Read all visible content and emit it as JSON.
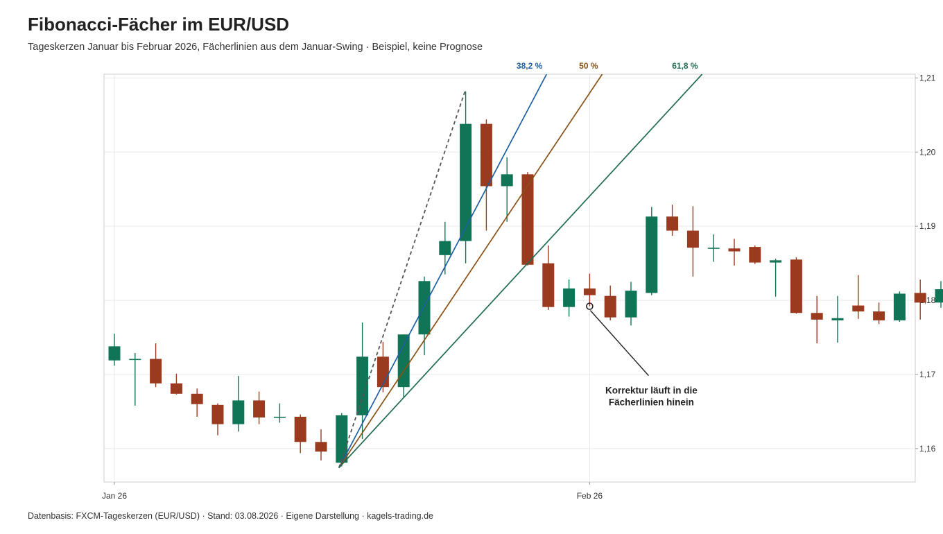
{
  "page": {
    "title": "Fibonacci-Fächer im EUR/USD",
    "subtitle": "Tageskerzen Januar bis Februar 2026, Fächerlinien aus dem Januar-Swing · Beispiel, keine Prognose",
    "footer": "Datenbasis: FXCM-Tageskerzen (EUR/USD) · Stand: 03.08.2026 · Eigene Darstellung · kagels-trading.de"
  },
  "colors": {
    "up": "#107557",
    "down": "#9a3a1e",
    "fan_382": "#1d5fa0",
    "fan_50": "#8a5113",
    "fan_618": "#1f6b52",
    "swing_line": "#555555",
    "grid": "#eaeaea",
    "axis": "#cccccc"
  },
  "chart_data": {
    "type": "candlestick",
    "title": "Fibonacci-Fächer im EUR/USD",
    "ylim": [
      1.1555,
      1.2105
    ],
    "y_axis_position": "right",
    "y_ticks": [
      {
        "value": 1.16,
        "label": "1,16"
      },
      {
        "value": 1.17,
        "label": "1,17"
      },
      {
        "value": 1.18,
        "label": "1,18"
      },
      {
        "value": 1.19,
        "label": "1,19"
      },
      {
        "value": 1.2,
        "label": "1,20"
      },
      {
        "value": 1.21,
        "label": "1,21"
      }
    ],
    "x_ticks": [
      {
        "date": "2026-01-26",
        "label": "Jan 26"
      },
      {
        "date": "2026-02-26",
        "label": "Feb 26"
      }
    ],
    "candles": [
      {
        "date": "2026-01-26",
        "open": 1.1719,
        "high": 1.1755,
        "low": 1.1712,
        "close": 1.1738
      },
      {
        "date": "2026-01-27",
        "open": 1.1721,
        "high": 1.1729,
        "low": 1.1658,
        "close": 1.1721
      },
      {
        "date": "2026-01-28",
        "open": 1.1721,
        "high": 1.1742,
        "low": 1.1683,
        "close": 1.1688
      },
      {
        "date": "2026-01-29",
        "open": 1.1688,
        "high": 1.1701,
        "low": 1.1673,
        "close": 1.1674
      },
      {
        "date": "2026-01-30",
        "open": 1.1674,
        "high": 1.1681,
        "low": 1.1643,
        "close": 1.166
      },
      {
        "date": "2026-02-02",
        "open": 1.1659,
        "high": 1.1661,
        "low": 1.1618,
        "close": 1.1633
      },
      {
        "date": "2026-02-03",
        "open": 1.1633,
        "high": 1.1698,
        "low": 1.1623,
        "close": 1.1665
      },
      {
        "date": "2026-02-04",
        "open": 1.1665,
        "high": 1.1677,
        "low": 1.1633,
        "close": 1.1642
      },
      {
        "date": "2026-02-05",
        "open": 1.1642,
        "high": 1.1661,
        "low": 1.1635,
        "close": 1.1643
      },
      {
        "date": "2026-02-06",
        "open": 1.1643,
        "high": 1.1646,
        "low": 1.1594,
        "close": 1.1609
      },
      {
        "date": "2026-02-09",
        "open": 1.1609,
        "high": 1.1626,
        "low": 1.1584,
        "close": 1.1596
      },
      {
        "date": "2026-02-10",
        "open": 1.1581,
        "high": 1.1648,
        "low": 1.1576,
        "close": 1.1645
      },
      {
        "date": "2026-02-11",
        "open": 1.1645,
        "high": 1.177,
        "low": 1.1613,
        "close": 1.1724
      },
      {
        "date": "2026-02-12",
        "open": 1.1724,
        "high": 1.1744,
        "low": 1.1676,
        "close": 1.1683
      },
      {
        "date": "2026-02-13",
        "open": 1.1683,
        "high": 1.1754,
        "low": 1.1669,
        "close": 1.1754
      },
      {
        "date": "2026-02-16",
        "open": 1.1754,
        "high": 1.1832,
        "low": 1.1726,
        "close": 1.1826
      },
      {
        "date": "2026-02-17",
        "open": 1.1861,
        "high": 1.1906,
        "low": 1.1835,
        "close": 1.188
      },
      {
        "date": "2026-02-18",
        "open": 1.188,
        "high": 1.2082,
        "low": 1.185,
        "close": 1.2038
      },
      {
        "date": "2026-02-19",
        "open": 1.2038,
        "high": 1.2044,
        "low": 1.1894,
        "close": 1.1954
      },
      {
        "date": "2026-02-20",
        "open": 1.1954,
        "high": 1.1993,
        "low": 1.1906,
        "close": 1.197
      },
      {
        "date": "2026-02-23",
        "open": 1.197,
        "high": 1.1973,
        "low": 1.1847,
        "close": 1.1848
      },
      {
        "date": "2026-02-24",
        "open": 1.185,
        "high": 1.1874,
        "low": 1.1787,
        "close": 1.1791
      },
      {
        "date": "2026-02-25",
        "open": 1.1791,
        "high": 1.1828,
        "low": 1.1778,
        "close": 1.1816
      },
      {
        "date": "2026-02-26",
        "open": 1.1816,
        "high": 1.1836,
        "low": 1.1792,
        "close": 1.1807
      },
      {
        "date": "2026-02-27",
        "open": 1.1806,
        "high": 1.182,
        "low": 1.1773,
        "close": 1.1777
      },
      {
        "date": "2026-03-02",
        "open": 1.1777,
        "high": 1.1825,
        "low": 1.1766,
        "close": 1.1813
      },
      {
        "date": "2026-03-03",
        "open": 1.181,
        "high": 1.1926,
        "low": 1.1807,
        "close": 1.1913
      },
      {
        "date": "2026-03-04",
        "open": 1.1913,
        "high": 1.1929,
        "low": 1.1887,
        "close": 1.1894
      },
      {
        "date": "2026-03-05",
        "open": 1.1894,
        "high": 1.1927,
        "low": 1.1832,
        "close": 1.1871
      },
      {
        "date": "2026-03-06",
        "open": 1.1871,
        "high": 1.1889,
        "low": 1.1852,
        "close": 1.1871
      },
      {
        "date": "2026-03-09",
        "open": 1.187,
        "high": 1.1883,
        "low": 1.1847,
        "close": 1.1866
      },
      {
        "date": "2026-03-10",
        "open": 1.1872,
        "high": 1.1874,
        "low": 1.1849,
        "close": 1.1851
      },
      {
        "date": "2026-03-11",
        "open": 1.1851,
        "high": 1.1856,
        "low": 1.1805,
        "close": 1.1854
      },
      {
        "date": "2026-03-12",
        "open": 1.1855,
        "high": 1.1858,
        "low": 1.1782,
        "close": 1.1783
      },
      {
        "date": "2026-03-13",
        "open": 1.1783,
        "high": 1.1806,
        "low": 1.1742,
        "close": 1.1774
      },
      {
        "date": "2026-03-16",
        "open": 1.1773,
        "high": 1.1806,
        "low": 1.1743,
        "close": 1.1776
      },
      {
        "date": "2026-03-17",
        "open": 1.1793,
        "high": 1.1834,
        "low": 1.1775,
        "close": 1.1785
      },
      {
        "date": "2026-03-18",
        "open": 1.1785,
        "high": 1.1797,
        "low": 1.1768,
        "close": 1.1773
      },
      {
        "date": "2026-03-19",
        "open": 1.1773,
        "high": 1.1812,
        "low": 1.1771,
        "close": 1.1809
      },
      {
        "date": "2026-03-20",
        "open": 1.181,
        "high": 1.1828,
        "low": 1.1774,
        "close": 1.1797
      },
      {
        "date": "2026-03-23",
        "open": 1.1797,
        "high": 1.1826,
        "low": 1.179,
        "close": 1.1815
      }
    ],
    "swing": {
      "start": {
        "date": "2026-02-10",
        "value": 1.1576
      },
      "end": {
        "date": "2026-02-18",
        "value": 1.2082
      }
    },
    "fan_lines": [
      {
        "label": "38,2 %",
        "through": {
          "date": "2026-02-19",
          "value": 1.1951
        },
        "color_key": "fan_382"
      },
      {
        "label": "50 %",
        "through": {
          "date": "2026-02-20",
          "value": 1.1913
        },
        "color_key": "fan_50"
      },
      {
        "label": "61,8 %",
        "through": {
          "date": "2026-02-23",
          "value": 1.185
        },
        "color_key": "fan_618"
      }
    ],
    "annotation": {
      "lines": [
        "Korrektur läuft in die",
        "Fächerlinien hinein"
      ],
      "point": {
        "date": "2026-02-26",
        "value": 1.1792
      }
    }
  }
}
